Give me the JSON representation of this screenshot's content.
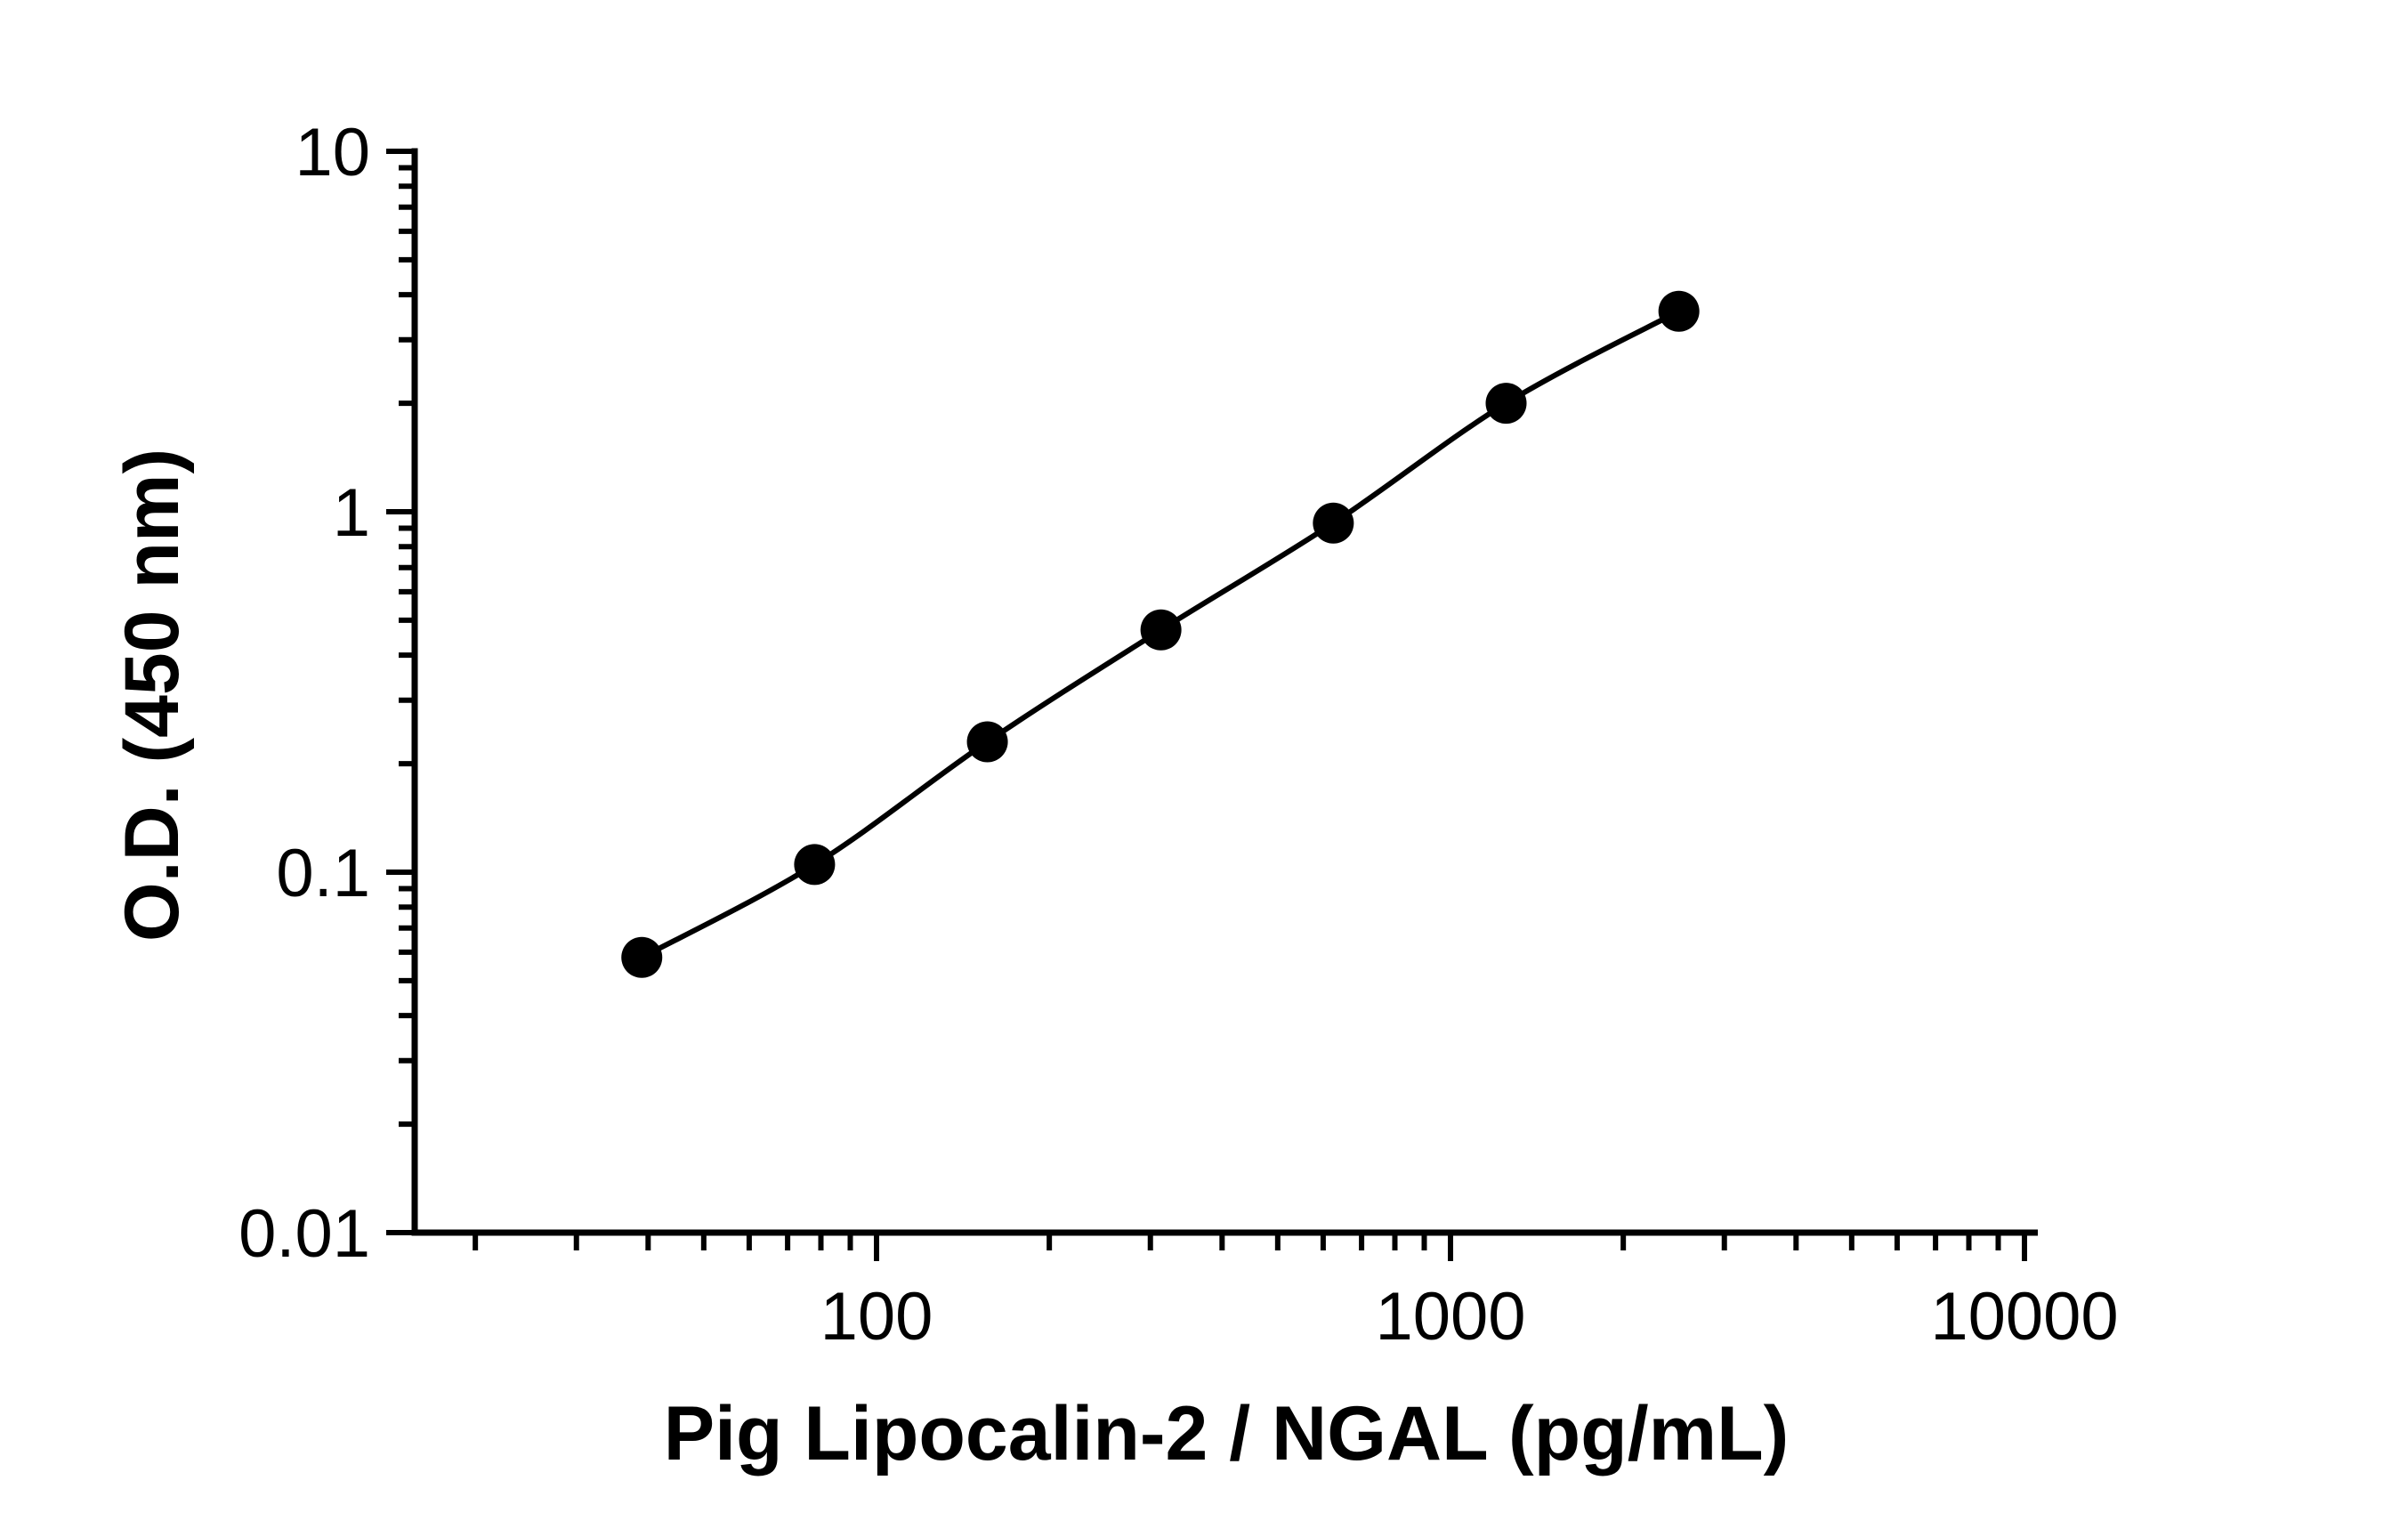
{
  "chart_data": {
    "type": "scatter",
    "title": "",
    "xlabel": "Pig Lipocalin-2 / NGAL (pg/mL)",
    "ylabel": "O.D. (450 nm)",
    "x_scale": "log",
    "y_scale": "log",
    "xlim": [
      10,
      10000
    ],
    "ylim": [
      0.01,
      10
    ],
    "x_ticks": [
      100,
      1000,
      10000
    ],
    "x_tick_labels": [
      "100",
      "1000",
      "10000"
    ],
    "y_ticks": [
      0.01,
      0.1,
      1,
      10
    ],
    "y_tick_labels": [
      "0.01",
      "0.1",
      "1",
      "10"
    ],
    "grid": false,
    "legend": "none",
    "series": [
      {
        "points": [
          {
            "x": 39,
            "y": 0.058
          },
          {
            "x": 78,
            "y": 0.105
          },
          {
            "x": 156,
            "y": 0.23
          },
          {
            "x": 313,
            "y": 0.47
          },
          {
            "x": 625,
            "y": 0.93
          },
          {
            "x": 1250,
            "y": 2.0
          },
          {
            "x": 2500,
            "y": 3.6
          }
        ],
        "color": "#000000",
        "fit_line": true
      }
    ]
  }
}
